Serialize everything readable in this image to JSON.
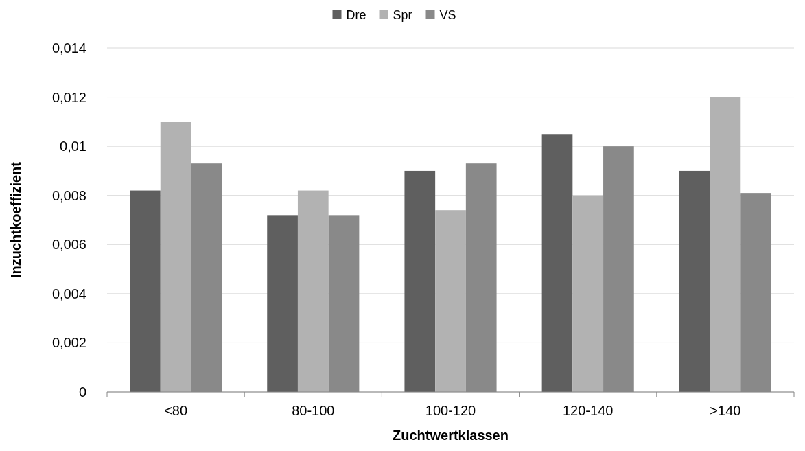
{
  "chart_data": {
    "type": "bar",
    "xlabel": "Zuchtwertklassen",
    "ylabel": "Inzuchtkoeffizient",
    "categories": [
      "<80",
      "80-100",
      "100-120",
      "120-140",
      ">140"
    ],
    "series": [
      {
        "name": "Dre",
        "color": "#5f5f5f",
        "values": [
          0.0082,
          0.0072,
          0.009,
          0.0105,
          0.009
        ]
      },
      {
        "name": "Spr",
        "color": "#b2b2b2",
        "values": [
          0.011,
          0.0082,
          0.0074,
          0.008,
          0.012
        ]
      },
      {
        "name": "VS",
        "color": "#898989",
        "values": [
          0.0093,
          0.0072,
          0.0093,
          0.01,
          0.0081
        ]
      }
    ],
    "ylim": [
      0,
      0.014
    ],
    "yticks": [
      0,
      {
        "value": 0.002,
        "label": "0,002"
      },
      {
        "value": 0.004,
        "label": "0,004"
      },
      {
        "value": 0.006,
        "label": "0,006"
      },
      {
        "value": 0.008,
        "label": "0,008"
      },
      {
        "value": 0.01,
        "label": "0,01"
      },
      {
        "value": 0.012,
        "label": "0,012"
      },
      {
        "value": 0.014,
        "label": "0,014"
      }
    ],
    "grid": "y",
    "legend": "top"
  }
}
